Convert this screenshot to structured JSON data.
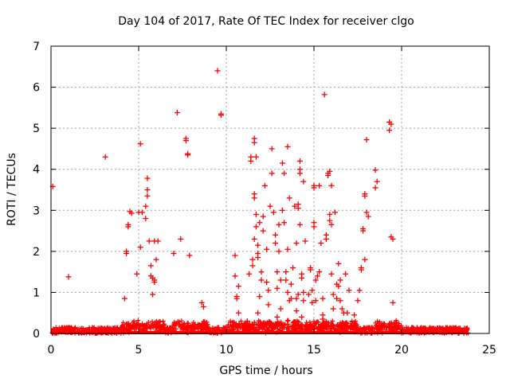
{
  "chart_data": {
    "type": "scatter",
    "title": "Day 104 of 2017, Rate Of TEC Index for receiver clgo",
    "xlabel": "GPS time / hours",
    "ylabel": "ROTI / TECUs",
    "xlim": [
      0,
      25
    ],
    "ylim": [
      0,
      7
    ],
    "x_ticks": [
      "0",
      "5",
      "10",
      "15",
      "20",
      "25"
    ],
    "y_ticks": [
      "0",
      "1",
      "2",
      "3",
      "4",
      "5",
      "6",
      "7"
    ],
    "grid": true,
    "legend": "none",
    "marker": "plus",
    "color": "#ff0000",
    "baseline": {
      "description": "dense band of points near zero for the whole observation window",
      "x_range": [
        0.0,
        23.8
      ],
      "y_range": [
        0.0,
        0.15
      ]
    },
    "points": [
      [
        0.1,
        3.58
      ],
      [
        1.0,
        1.38
      ],
      [
        3.1,
        4.3
      ],
      [
        4.2,
        0.85
      ],
      [
        4.3,
        1.95
      ],
      [
        4.3,
        2.0
      ],
      [
        4.4,
        2.6
      ],
      [
        4.4,
        2.65
      ],
      [
        4.5,
        2.97
      ],
      [
        4.6,
        2.93
      ],
      [
        4.9,
        1.45
      ],
      [
        5.0,
        2.95
      ],
      [
        5.1,
        4.62
      ],
      [
        5.1,
        2.1
      ],
      [
        5.2,
        2.95
      ],
      [
        5.4,
        3.1
      ],
      [
        5.4,
        2.8
      ],
      [
        5.5,
        3.78
      ],
      [
        5.5,
        3.5
      ],
      [
        5.5,
        3.35
      ],
      [
        5.6,
        2.25
      ],
      [
        5.7,
        1.4
      ],
      [
        5.7,
        1.65
      ],
      [
        5.8,
        1.35
      ],
      [
        5.9,
        1.3
      ],
      [
        5.9,
        1.25
      ],
      [
        5.9,
        2.25
      ],
      [
        6.0,
        1.8
      ],
      [
        6.1,
        2.25
      ],
      [
        5.8,
        0.95
      ],
      [
        7.0,
        1.95
      ],
      [
        7.2,
        5.38
      ],
      [
        7.4,
        2.3
      ],
      [
        7.7,
        4.75
      ],
      [
        7.7,
        4.7
      ],
      [
        7.8,
        4.38
      ],
      [
        7.8,
        4.35
      ],
      [
        7.9,
        1.9
      ],
      [
        8.6,
        0.75
      ],
      [
        8.7,
        0.65
      ],
      [
        9.5,
        6.4
      ],
      [
        9.7,
        5.35
      ],
      [
        9.7,
        5.32
      ],
      [
        10.5,
        1.9
      ],
      [
        10.5,
        1.4
      ],
      [
        10.6,
        0.9
      ],
      [
        10.6,
        0.85
      ],
      [
        10.7,
        1.15
      ],
      [
        10.7,
        0.5
      ],
      [
        11.2,
        0.3
      ],
      [
        11.3,
        1.45
      ],
      [
        11.4,
        4.3
      ],
      [
        11.4,
        4.2
      ],
      [
        11.5,
        1.8
      ],
      [
        11.5,
        1.65
      ],
      [
        11.6,
        4.75
      ],
      [
        11.6,
        4.65
      ],
      [
        11.7,
        4.3
      ],
      [
        11.6,
        3.4
      ],
      [
        11.6,
        3.3
      ],
      [
        11.7,
        2.9
      ],
      [
        11.7,
        2.6
      ],
      [
        11.6,
        2.3
      ],
      [
        11.8,
        2.15
      ],
      [
        11.8,
        1.95
      ],
      [
        11.8,
        1.85
      ],
      [
        11.9,
        2.7
      ],
      [
        12.0,
        1.5
      ],
      [
        12.0,
        1.3
      ],
      [
        11.9,
        0.9
      ],
      [
        11.8,
        0.5
      ],
      [
        12.1,
        2.85
      ],
      [
        12.1,
        2.5
      ],
      [
        12.2,
        3.6
      ],
      [
        12.3,
        2.05
      ],
      [
        12.3,
        1.25
      ],
      [
        12.4,
        1.05
      ],
      [
        12.4,
        0.7
      ],
      [
        12.5,
        3.1
      ],
      [
        12.6,
        4.5
      ],
      [
        12.6,
        3.9
      ],
      [
        12.7,
        2.95
      ],
      [
        12.8,
        2.4
      ],
      [
        12.8,
        2.2
      ],
      [
        12.9,
        1.5
      ],
      [
        12.9,
        1.1
      ],
      [
        12.9,
        0.4
      ],
      [
        13.0,
        2.65
      ],
      [
        13.0,
        2.0
      ],
      [
        13.1,
        1.3
      ],
      [
        13.1,
        0.6
      ],
      [
        13.2,
        4.15
      ],
      [
        13.2,
        3.0
      ],
      [
        13.3,
        3.9
      ],
      [
        13.3,
        2.7
      ],
      [
        13.4,
        1.5
      ],
      [
        13.4,
        1.3
      ],
      [
        13.5,
        4.55
      ],
      [
        13.5,
        2.05
      ],
      [
        13.5,
        1.0
      ],
      [
        13.6,
        0.8
      ],
      [
        13.6,
        3.3
      ],
      [
        13.7,
        1.2
      ],
      [
        13.7,
        0.85
      ],
      [
        13.8,
        1.6
      ],
      [
        13.9,
        3.1
      ],
      [
        14.0,
        2.2
      ],
      [
        14.0,
        0.85
      ],
      [
        14.0,
        0.55
      ],
      [
        14.1,
        3.15
      ],
      [
        14.1,
        3.05
      ],
      [
        14.1,
        0.95
      ],
      [
        14.2,
        4.2
      ],
      [
        14.2,
        4.0
      ],
      [
        14.2,
        3.9
      ],
      [
        14.2,
        2.65
      ],
      [
        14.3,
        1.45
      ],
      [
        14.3,
        1.35
      ],
      [
        14.3,
        0.4
      ],
      [
        14.4,
        3.7
      ],
      [
        14.4,
        1.0
      ],
      [
        14.4,
        0.8
      ],
      [
        14.5,
        2.25
      ],
      [
        14.7,
        0.95
      ],
      [
        14.8,
        1.6
      ],
      [
        14.8,
        1.55
      ],
      [
        14.9,
        1.05
      ],
      [
        14.9,
        0.75
      ],
      [
        15.0,
        3.6
      ],
      [
        15.0,
        3.55
      ],
      [
        15.0,
        2.7
      ],
      [
        15.0,
        2.6
      ],
      [
        15.1,
        1.3
      ],
      [
        15.1,
        0.8
      ],
      [
        15.2,
        1.4
      ],
      [
        15.3,
        1.5
      ],
      [
        15.3,
        3.6
      ],
      [
        15.4,
        2.2
      ],
      [
        15.5,
        0.85
      ],
      [
        15.5,
        0.45
      ],
      [
        15.5,
        0.35
      ],
      [
        15.6,
        5.82
      ],
      [
        15.7,
        2.4
      ],
      [
        15.7,
        2.3
      ],
      [
        15.8,
        3.9
      ],
      [
        15.8,
        3.85
      ],
      [
        15.9,
        3.95
      ],
      [
        15.9,
        2.9
      ],
      [
        15.9,
        2.75
      ],
      [
        16.0,
        3.6
      ],
      [
        16.0,
        2.65
      ],
      [
        16.0,
        1.45
      ],
      [
        16.1,
        0.6
      ],
      [
        16.1,
        0.95
      ],
      [
        16.2,
        2.95
      ],
      [
        16.3,
        1.2
      ],
      [
        16.3,
        0.85
      ],
      [
        16.4,
        1.7
      ],
      [
        16.4,
        1.15
      ],
      [
        16.5,
        1.3
      ],
      [
        16.5,
        0.8
      ],
      [
        16.6,
        0.6
      ],
      [
        16.7,
        0.5
      ],
      [
        16.8,
        1.45
      ],
      [
        16.9,
        0.5
      ],
      [
        17.0,
        1.05
      ],
      [
        17.3,
        0.45
      ],
      [
        17.5,
        0.8
      ],
      [
        17.6,
        1.05
      ],
      [
        17.7,
        1.55
      ],
      [
        17.7,
        1.6
      ],
      [
        17.8,
        2.55
      ],
      [
        17.8,
        2.5
      ],
      [
        17.9,
        1.8
      ],
      [
        17.9,
        3.35
      ],
      [
        17.9,
        3.4
      ],
      [
        18.0,
        4.72
      ],
      [
        18.0,
        2.95
      ],
      [
        18.1,
        2.85
      ],
      [
        18.5,
        3.98
      ],
      [
        18.5,
        3.55
      ],
      [
        18.6,
        3.7
      ],
      [
        19.3,
        5.15
      ],
      [
        19.3,
        4.95
      ],
      [
        19.4,
        5.1
      ],
      [
        19.4,
        2.35
      ],
      [
        19.5,
        2.3
      ],
      [
        19.5,
        0.75
      ]
    ]
  }
}
